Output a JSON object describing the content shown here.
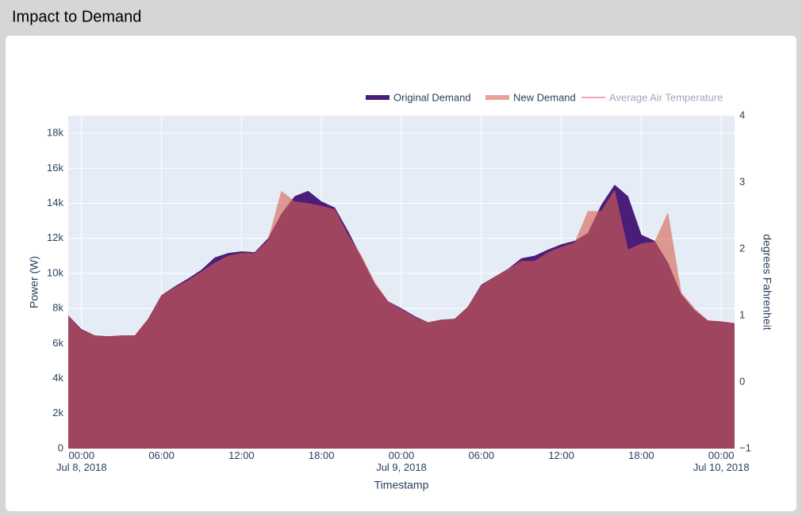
{
  "chart_data": {
    "type": "area",
    "title": "Impact to Demand",
    "x_label": "Timestamp",
    "y_label": "Power (W)",
    "y2_label": "degrees Fahrenheit",
    "x": [
      "2018-07-07 23:00",
      "2018-07-08 00:00",
      "2018-07-08 01:00",
      "2018-07-08 02:00",
      "2018-07-08 03:00",
      "2018-07-08 04:00",
      "2018-07-08 05:00",
      "2018-07-08 06:00",
      "2018-07-08 07:00",
      "2018-07-08 08:00",
      "2018-07-08 09:00",
      "2018-07-08 10:00",
      "2018-07-08 11:00",
      "2018-07-08 12:00",
      "2018-07-08 13:00",
      "2018-07-08 14:00",
      "2018-07-08 15:00",
      "2018-07-08 16:00",
      "2018-07-08 17:00",
      "2018-07-08 18:00",
      "2018-07-08 19:00",
      "2018-07-08 20:00",
      "2018-07-08 21:00",
      "2018-07-08 22:00",
      "2018-07-08 23:00",
      "2018-07-09 00:00",
      "2018-07-09 01:00",
      "2018-07-09 02:00",
      "2018-07-09 03:00",
      "2018-07-09 04:00",
      "2018-07-09 05:00",
      "2018-07-09 06:00",
      "2018-07-09 07:00",
      "2018-07-09 08:00",
      "2018-07-09 09:00",
      "2018-07-09 10:00",
      "2018-07-09 11:00",
      "2018-07-09 12:00",
      "2018-07-09 13:00",
      "2018-07-09 14:00",
      "2018-07-09 15:00",
      "2018-07-09 16:00",
      "2018-07-09 17:00",
      "2018-07-09 18:00",
      "2018-07-09 19:00",
      "2018-07-09 20:00",
      "2018-07-09 21:00",
      "2018-07-09 22:00",
      "2018-07-09 23:00",
      "2018-07-10 00:00",
      "2018-07-10 01:00"
    ],
    "series": [
      {
        "name": "Original Demand",
        "color": "#4b1d7a",
        "values": [
          7600,
          6800,
          6450,
          6400,
          6450,
          6450,
          7400,
          8750,
          9250,
          9700,
          10200,
          10900,
          11150,
          11250,
          11200,
          12000,
          13400,
          14400,
          14700,
          14100,
          13750,
          12400,
          10900,
          9400,
          8400,
          8000,
          7550,
          7200,
          7350,
          7400,
          8100,
          9350,
          9800,
          10250,
          10850,
          11000,
          11350,
          11650,
          11850,
          12300,
          13900,
          15050,
          14400,
          12200,
          11850,
          10600,
          8800,
          7900,
          7300,
          7250,
          7150
        ]
      },
      {
        "name": "New Demand",
        "color": "#d9604f",
        "values": [
          7600,
          6750,
          6450,
          6400,
          6450,
          6450,
          7400,
          8750,
          9200,
          9600,
          10100,
          10600,
          11000,
          11150,
          11150,
          11900,
          14700,
          14100,
          14000,
          13850,
          13650,
          12200,
          11000,
          9500,
          8400,
          7950,
          7500,
          7200,
          7350,
          7400,
          8100,
          9300,
          9800,
          10250,
          10700,
          10700,
          11200,
          11500,
          11750,
          13550,
          13550,
          14750,
          11350,
          11700,
          11800,
          13450,
          8900,
          8000,
          7300,
          7250,
          7150
        ]
      },
      {
        "name": "Average Air Temperature",
        "color": "#f4a6b4",
        "axis": "y2",
        "visible": false
      }
    ],
    "xlim": [
      "2018-07-07 23:00",
      "2018-07-10 01:00"
    ],
    "xticks": [
      {
        "value": "2018-07-08 00:00",
        "label": "00:00\nJul 8, 2018"
      },
      {
        "value": "2018-07-08 06:00",
        "label": "06:00"
      },
      {
        "value": "2018-07-08 12:00",
        "label": "12:00"
      },
      {
        "value": "2018-07-08 18:00",
        "label": "18:00"
      },
      {
        "value": "2018-07-09 00:00",
        "label": "00:00\nJul 9, 2018"
      },
      {
        "value": "2018-07-09 06:00",
        "label": "06:00"
      },
      {
        "value": "2018-07-09 12:00",
        "label": "12:00"
      },
      {
        "value": "2018-07-09 18:00",
        "label": "18:00"
      },
      {
        "value": "2018-07-10 00:00",
        "label": "00:00\nJul 10, 2018"
      }
    ],
    "ylim": [
      0,
      19000
    ],
    "yticks": [
      0,
      {
        "value": 2000,
        "label": "2k"
      },
      {
        "value": 4000,
        "label": "4k"
      },
      {
        "value": 6000,
        "label": "6k"
      },
      {
        "value": 8000,
        "label": "8k"
      },
      {
        "value": 10000,
        "label": "10k"
      },
      {
        "value": 12000,
        "label": "12k"
      },
      {
        "value": 14000,
        "label": "14k"
      },
      {
        "value": 16000,
        "label": "16k"
      },
      {
        "value": 18000,
        "label": "18k"
      }
    ],
    "y2lim": [
      -1,
      4
    ],
    "y2ticks": [
      {
        "value": -1,
        "label": "−1"
      },
      0,
      1,
      2,
      3,
      4
    ],
    "grid": true
  }
}
